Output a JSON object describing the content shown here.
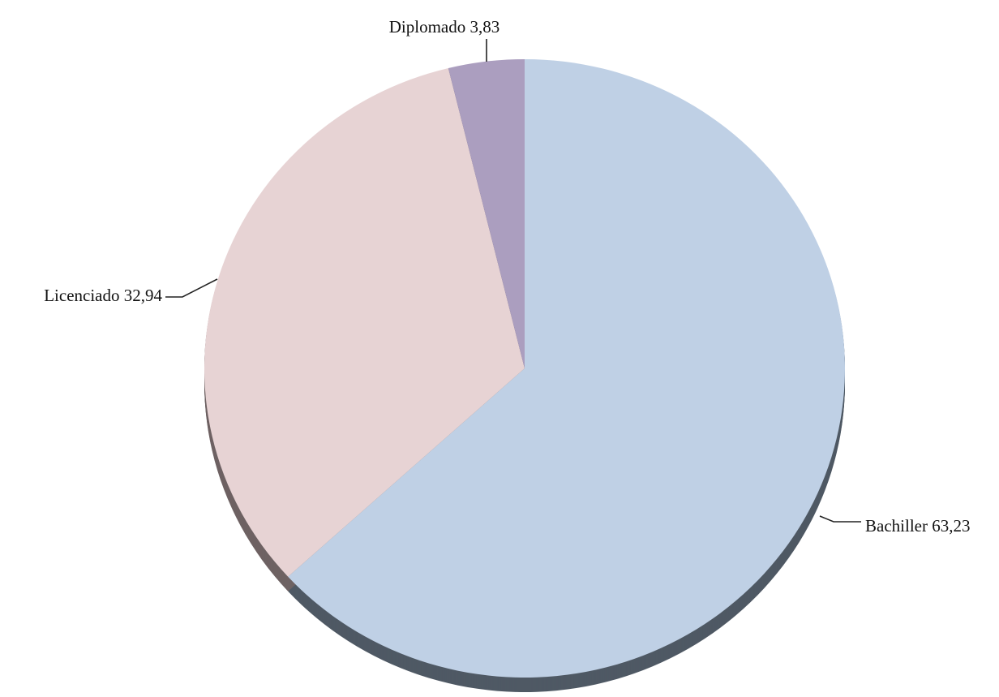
{
  "chart_data": {
    "type": "pie",
    "title": "",
    "start_angle_deg": 0,
    "direction": "clockwise",
    "slices": [
      {
        "label": "Bachiller",
        "value": 63.23,
        "value_text": "63,23",
        "color": "#bfd0e5",
        "shade": "#4f5964"
      },
      {
        "label": "Licenciado",
        "value": 32.94,
        "value_text": "32,94",
        "color": "#e7d3d4",
        "shade": "#6e6263"
      },
      {
        "label": "Diplomado",
        "value": 3.83,
        "value_text": "3,83",
        "color": "#ab9ebf",
        "shade": "#5b5265"
      }
    ]
  }
}
